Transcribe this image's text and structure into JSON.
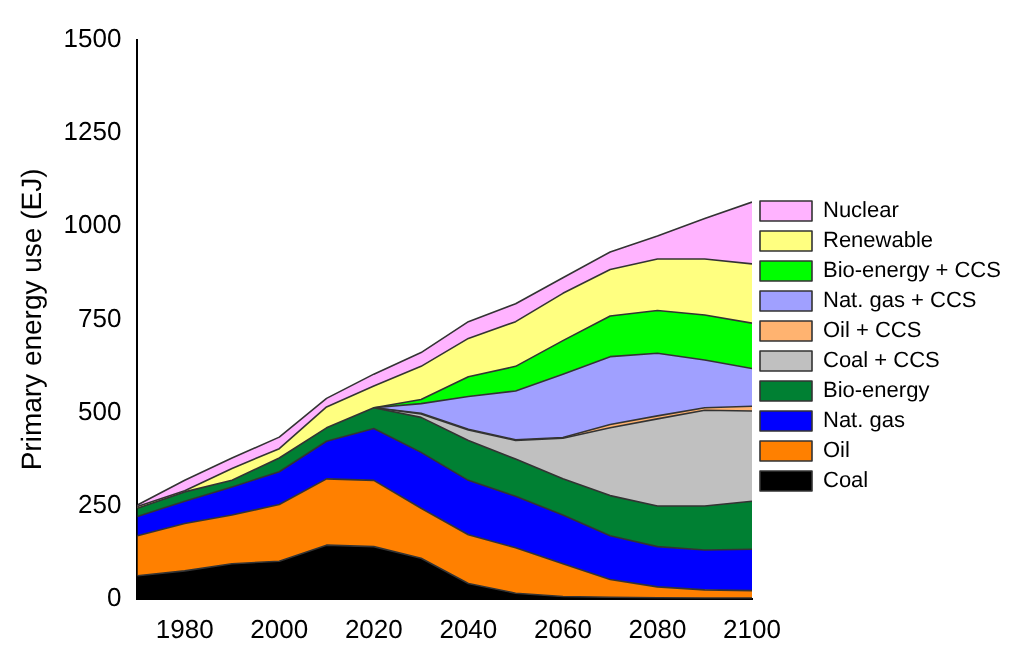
{
  "chart_data": {
    "type": "area",
    "stacked": true,
    "ylabel": "Primary energy use (EJ)",
    "x": [
      1970,
      1980,
      1990,
      2000,
      2010,
      2020,
      2030,
      2040,
      2050,
      2060,
      2070,
      2080,
      2090,
      2100
    ],
    "xlim": [
      1970,
      2100
    ],
    "xticks": [
      1980,
      2000,
      2020,
      2040,
      2060,
      2080,
      2100
    ],
    "ylim": [
      0,
      1500
    ],
    "yticks": [
      0,
      250,
      500,
      750,
      1000,
      1250,
      1500
    ],
    "grid": false,
    "legend": "right",
    "series": [
      {
        "name": "Coal",
        "color": "#000000",
        "values": [
          62,
          75,
          94,
          101,
          144,
          140,
          109,
          41,
          15,
          6,
          4,
          3,
          2,
          2
        ]
      },
      {
        "name": "Oil",
        "color": "#ff8000",
        "values": [
          107,
          127,
          131,
          152,
          178,
          178,
          134,
          131,
          122,
          88,
          48,
          29,
          22,
          20
        ]
      },
      {
        "name": "Nat. gas",
        "color": "#0000ff",
        "values": [
          52,
          60,
          75,
          88,
          101,
          139,
          150,
          146,
          138,
          131,
          117,
          108,
          107,
          111
        ]
      },
      {
        "name": "Bio-energy",
        "color": "#008033",
        "values": [
          22,
          25,
          18,
          37,
          36,
          56,
          94,
          107,
          100,
          97,
          108,
          109,
          118,
          129
        ]
      },
      {
        "name": "Coal + CCS",
        "color": "#c0c0c0",
        "values": [
          null,
          null,
          null,
          null,
          null,
          0,
          9,
          28,
          50,
          109,
          182,
          234,
          257,
          242
        ]
      },
      {
        "name": "Oil + CCS",
        "color": "#ffb370",
        "values": [
          null,
          null,
          null,
          null,
          null,
          0,
          2,
          2,
          2,
          2,
          9,
          8,
          7,
          13
        ]
      },
      {
        "name": "Nat. gas + CCS",
        "color": "#a0a0ff",
        "values": [
          null,
          null,
          null,
          null,
          null,
          0,
          26,
          88,
          131,
          170,
          182,
          168,
          128,
          101
        ]
      },
      {
        "name": "Bio-energy + CCS",
        "color": "#00ff00",
        "values": [
          null,
          null,
          null,
          null,
          null,
          0,
          11,
          53,
          66,
          90,
          109,
          115,
          121,
          122
        ]
      },
      {
        "name": "Renewable",
        "color": "#ffff80",
        "values": [
          5,
          3,
          32,
          25,
          56,
          58,
          89,
          103,
          120,
          127,
          125,
          138,
          150,
          159
        ]
      },
      {
        "name": "Nuclear",
        "color": "#ffb3ff",
        "values": [
          4,
          28,
          28,
          31,
          23,
          32,
          37,
          45,
          48,
          42,
          47,
          62,
          109,
          166
        ]
      }
    ]
  }
}
